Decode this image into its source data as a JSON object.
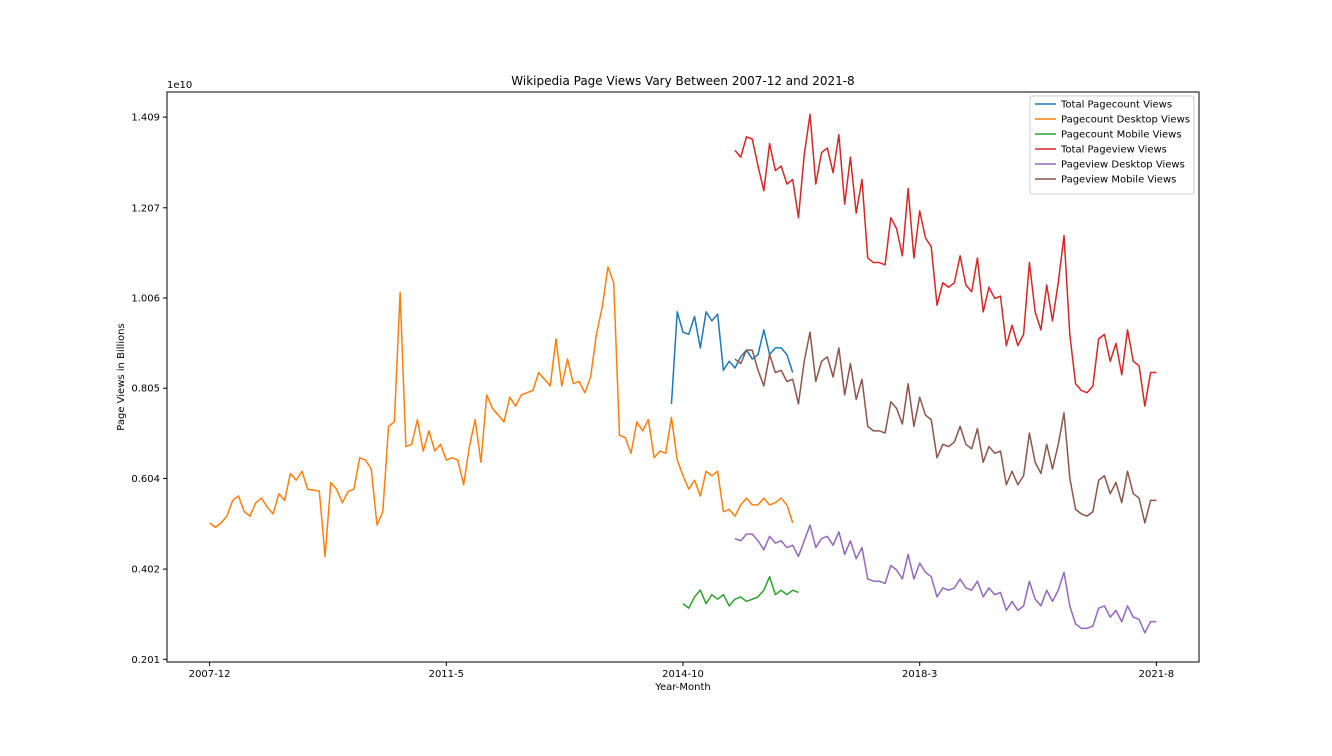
{
  "chart_data": {
    "type": "line",
    "title": "Wikipedia Page Views Vary Between 2007-12 and 2021-8",
    "xlabel": "Year-Month",
    "ylabel": "Page Views in Billions",
    "y_offset_text": "1e10",
    "x_tick_labels": [
      "2007-12",
      "2011-5",
      "2014-10",
      "2018-3",
      "2021-8"
    ],
    "y_tick_labels": [
      "0.201",
      "0.402",
      "0.604",
      "0.805",
      "1.006",
      "1.207",
      "1.409"
    ],
    "y_ticks": [
      0.201,
      0.402,
      0.604,
      0.805,
      1.006,
      1.207,
      1.409
    ],
    "x_range_months": [
      "2007-12",
      "2021-8"
    ],
    "ylim": [
      0.195,
      1.465
    ],
    "grid": false,
    "legend_position": "top-right",
    "series": [
      {
        "name": "Total Pagecount Views",
        "color": "#1f77b4",
        "start": "2014-8",
        "values": [
          0.77,
          0.975,
          0.93,
          0.925,
          0.965,
          0.895,
          0.975,
          0.955,
          0.97,
          0.845,
          0.865,
          0.85,
          0.875,
          0.89,
          0.87,
          0.88,
          0.935,
          0.88,
          0.895,
          0.895,
          0.88,
          0.84
        ]
      },
      {
        "name": "Pagecount Desktop Views",
        "color": "#ff7f0e",
        "start": "2007-12",
        "values": [
          0.505,
          0.495,
          0.505,
          0.52,
          0.555,
          0.565,
          0.53,
          0.52,
          0.55,
          0.56,
          0.54,
          0.525,
          0.57,
          0.555,
          0.615,
          0.6,
          0.62,
          0.58,
          0.578,
          0.576,
          0.43,
          0.595,
          0.58,
          0.55,
          0.575,
          0.58,
          0.65,
          0.645,
          0.625,
          0.5,
          0.53,
          0.72,
          0.73,
          1.018,
          0.675,
          0.68,
          0.735,
          0.665,
          0.71,
          0.665,
          0.68,
          0.645,
          0.65,
          0.645,
          0.59,
          0.675,
          0.735,
          0.64,
          0.79,
          0.76,
          0.745,
          0.73,
          0.785,
          0.765,
          0.79,
          0.795,
          0.8,
          0.84,
          0.825,
          0.81,
          0.915,
          0.81,
          0.87,
          0.815,
          0.82,
          0.795,
          0.83,
          0.925,
          0.985,
          1.075,
          1.04,
          0.7,
          0.695,
          0.66,
          0.73,
          0.71,
          0.735,
          0.65,
          0.665,
          0.66,
          0.74,
          0.645,
          0.61,
          0.58,
          0.6,
          0.565,
          0.62,
          0.61,
          0.62,
          0.53,
          0.535,
          0.52,
          0.545,
          0.56,
          0.545,
          0.545,
          0.56,
          0.545,
          0.55,
          0.56,
          0.545,
          0.505
        ]
      },
      {
        "name": "Pagecount Mobile Views",
        "color": "#2ca02c",
        "start": "2014-10",
        "values": [
          0.325,
          0.315,
          0.34,
          0.355,
          0.325,
          0.345,
          0.335,
          0.345,
          0.32,
          0.335,
          0.34,
          0.33,
          0.335,
          0.34,
          0.355,
          0.385,
          0.345,
          0.355,
          0.345,
          0.355,
          0.35
        ]
      },
      {
        "name": "Total Pageview Views",
        "color": "#d62728",
        "start": "2015-7",
        "values": [
          1.335,
          1.32,
          1.365,
          1.36,
          1.3,
          1.245,
          1.35,
          1.29,
          1.3,
          1.26,
          1.27,
          1.185,
          1.325,
          1.415,
          1.26,
          1.33,
          1.34,
          1.285,
          1.37,
          1.215,
          1.32,
          1.195,
          1.27,
          1.095,
          1.085,
          1.085,
          1.08,
          1.185,
          1.16,
          1.1,
          1.25,
          1.095,
          1.2,
          1.14,
          1.12,
          0.99,
          1.04,
          1.03,
          1.04,
          1.1,
          1.035,
          1.02,
          1.095,
          0.975,
          1.03,
          1.005,
          1.01,
          0.9,
          0.945,
          0.9,
          0.925,
          1.085,
          0.975,
          0.935,
          1.035,
          0.955,
          1.04,
          1.145,
          0.925,
          0.815,
          0.8,
          0.795,
          0.81,
          0.915,
          0.925,
          0.865,
          0.905,
          0.835,
          0.935,
          0.865,
          0.855,
          0.765,
          0.84,
          0.84
        ]
      },
      {
        "name": "Pageview Desktop Views",
        "color": "#9467bd",
        "start": "2015-7",
        "values": [
          0.47,
          0.465,
          0.48,
          0.48,
          0.465,
          0.445,
          0.475,
          0.46,
          0.465,
          0.45,
          0.455,
          0.43,
          0.465,
          0.5,
          0.45,
          0.47,
          0.475,
          0.455,
          0.485,
          0.435,
          0.465,
          0.425,
          0.45,
          0.38,
          0.375,
          0.375,
          0.37,
          0.41,
          0.4,
          0.38,
          0.435,
          0.38,
          0.415,
          0.395,
          0.385,
          0.34,
          0.36,
          0.355,
          0.36,
          0.38,
          0.36,
          0.355,
          0.375,
          0.34,
          0.36,
          0.345,
          0.35,
          0.31,
          0.33,
          0.31,
          0.32,
          0.375,
          0.335,
          0.32,
          0.355,
          0.33,
          0.355,
          0.395,
          0.32,
          0.28,
          0.27,
          0.27,
          0.275,
          0.315,
          0.32,
          0.295,
          0.31,
          0.285,
          0.32,
          0.295,
          0.29,
          0.26,
          0.285,
          0.285
        ]
      },
      {
        "name": "Pageview Mobile Views",
        "color": "#8c564b",
        "start": "2015-7",
        "values": [
          0.87,
          0.86,
          0.89,
          0.89,
          0.845,
          0.81,
          0.88,
          0.84,
          0.845,
          0.82,
          0.825,
          0.77,
          0.865,
          0.93,
          0.82,
          0.865,
          0.875,
          0.83,
          0.895,
          0.79,
          0.86,
          0.78,
          0.825,
          0.72,
          0.71,
          0.71,
          0.705,
          0.775,
          0.76,
          0.725,
          0.815,
          0.72,
          0.785,
          0.745,
          0.735,
          0.65,
          0.68,
          0.675,
          0.685,
          0.72,
          0.68,
          0.67,
          0.715,
          0.64,
          0.675,
          0.66,
          0.665,
          0.59,
          0.62,
          0.59,
          0.61,
          0.705,
          0.64,
          0.615,
          0.68,
          0.625,
          0.68,
          0.75,
          0.605,
          0.535,
          0.525,
          0.52,
          0.53,
          0.6,
          0.61,
          0.57,
          0.595,
          0.55,
          0.62,
          0.57,
          0.56,
          0.505,
          0.555,
          0.555
        ]
      }
    ]
  }
}
